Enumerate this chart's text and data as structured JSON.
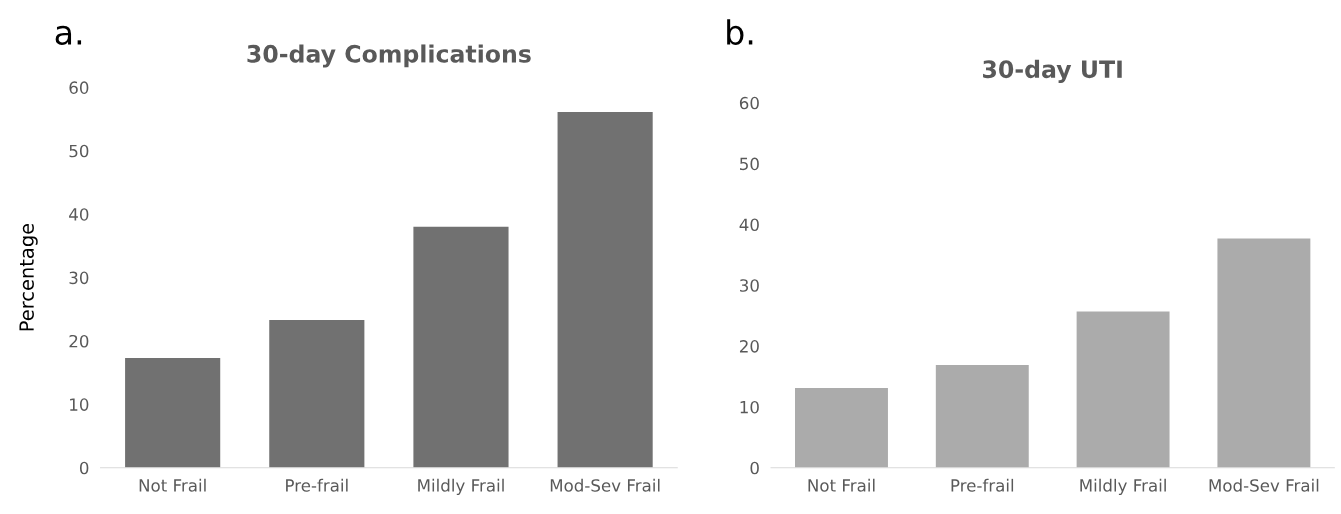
{
  "chart_data": [
    {
      "type": "bar",
      "title": "30-day Complications",
      "ylabel": "Percentage",
      "annotations": [
        "a."
      ],
      "categories": [
        "Not Frail",
        "Pre-frail",
        "Mildly Frail",
        "Mod-Sev Frail"
      ],
      "values": [
        17.3,
        23.3,
        38.0,
        56.1
      ],
      "color": "#717171",
      "ylim": [
        0,
        60
      ],
      "yticks": [
        0,
        10,
        20,
        30,
        40,
        50,
        60
      ],
      "grid": false
    },
    {
      "type": "bar",
      "title": "30-day UTI",
      "annotations": [
        "b."
      ],
      "categories": [
        "Not Frail",
        "Pre-frail",
        "Mildly Frail",
        "Mod-Sev Frail"
      ],
      "values": [
        13.1,
        16.9,
        25.7,
        37.7
      ],
      "color": "#ababab",
      "ylim": [
        0,
        60
      ],
      "yticks": [
        0,
        10,
        20,
        30,
        40,
        50,
        60
      ],
      "grid": false
    }
  ]
}
